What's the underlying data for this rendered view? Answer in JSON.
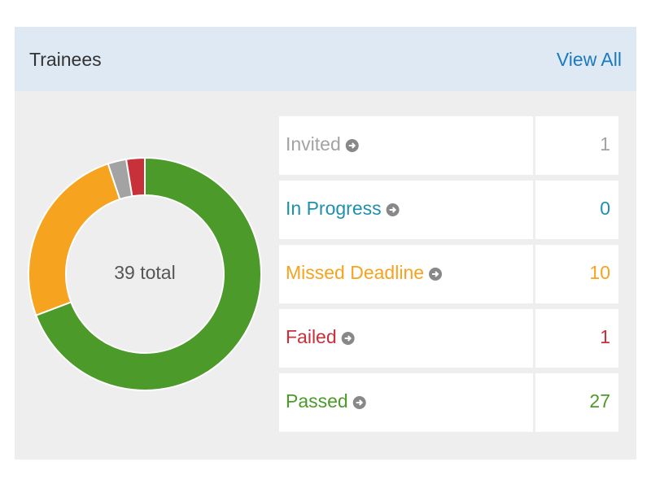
{
  "header": {
    "title": "Trainees",
    "link": "View All"
  },
  "chart_data": {
    "type": "donut",
    "center_label": "39 total",
    "categories": [
      "Invited",
      "In Progress",
      "Missed Deadline",
      "Failed",
      "Passed"
    ],
    "values": [
      1,
      0,
      10,
      1,
      27
    ],
    "colors": [
      "#a3a3a3",
      "#1f8fae",
      "#f6a31f",
      "#c8303a",
      "#4c9a2a"
    ]
  }
}
